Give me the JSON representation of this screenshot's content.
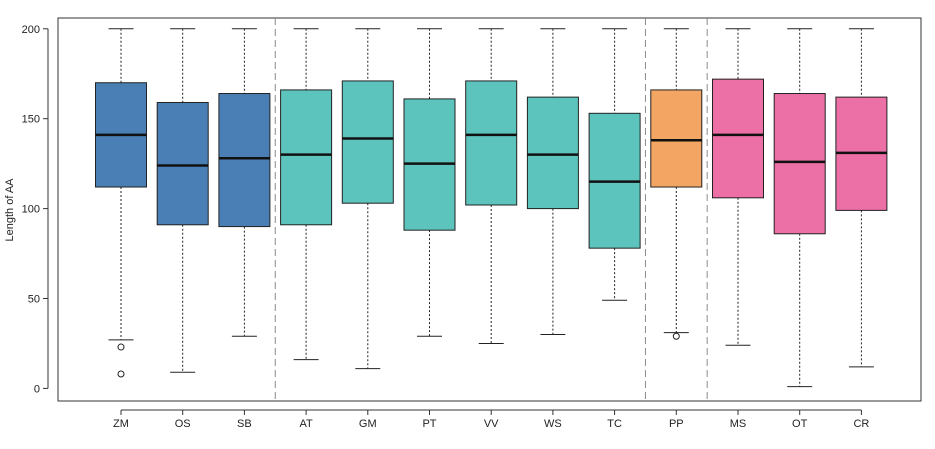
{
  "chart_data": {
    "type": "boxplot",
    "ylabel": "Length of AA",
    "xlabel": "",
    "title": "",
    "ylim": [
      -7,
      206
    ],
    "yticks": [
      0,
      50,
      100,
      150,
      200
    ],
    "grid": false,
    "legend": "none",
    "categories": [
      "ZM",
      "OS",
      "SB",
      "AT",
      "GM",
      "PT",
      "VV",
      "WS",
      "TC",
      "PP",
      "MS",
      "OT",
      "CR"
    ],
    "separators_after": [
      "SB",
      "TC",
      "PP"
    ],
    "groups": [
      {
        "members": [
          "ZM",
          "OS",
          "SB"
        ],
        "color": "#4a7fb5"
      },
      {
        "members": [
          "AT",
          "GM",
          "PT",
          "VV",
          "WS",
          "TC"
        ],
        "color": "#5cc4bd"
      },
      {
        "members": [
          "PP"
        ],
        "color": "#f3a564"
      },
      {
        "members": [
          "MS",
          "OT",
          "CR"
        ],
        "color": "#ec6fa6"
      }
    ],
    "boxes": [
      {
        "name": "ZM",
        "whisker_low": 27,
        "q1": 112,
        "median": 141,
        "q3": 170,
        "whisker_high": 200,
        "outliers": [
          23,
          8
        ]
      },
      {
        "name": "OS",
        "whisker_low": 9,
        "q1": 91,
        "median": 124,
        "q3": 159,
        "whisker_high": 200,
        "outliers": []
      },
      {
        "name": "SB",
        "whisker_low": 29,
        "q1": 90,
        "median": 128,
        "q3": 164,
        "whisker_high": 200,
        "outliers": []
      },
      {
        "name": "AT",
        "whisker_low": 16,
        "q1": 91,
        "median": 130,
        "q3": 166,
        "whisker_high": 200,
        "outliers": []
      },
      {
        "name": "GM",
        "whisker_low": 11,
        "q1": 103,
        "median": 139,
        "q3": 171,
        "whisker_high": 200,
        "outliers": []
      },
      {
        "name": "PT",
        "whisker_low": 29,
        "q1": 88,
        "median": 125,
        "q3": 161,
        "whisker_high": 200,
        "outliers": []
      },
      {
        "name": "VV",
        "whisker_low": 25,
        "q1": 102,
        "median": 141,
        "q3": 171,
        "whisker_high": 200,
        "outliers": []
      },
      {
        "name": "WS",
        "whisker_low": 30,
        "q1": 100,
        "median": 130,
        "q3": 162,
        "whisker_high": 200,
        "outliers": []
      },
      {
        "name": "TC",
        "whisker_low": 49,
        "q1": 78,
        "median": 115,
        "q3": 153,
        "whisker_high": 200,
        "outliers": []
      },
      {
        "name": "PP",
        "whisker_low": 31,
        "q1": 112,
        "median": 138,
        "q3": 166,
        "whisker_high": 200,
        "outliers": [
          29
        ]
      },
      {
        "name": "MS",
        "whisker_low": 24,
        "q1": 106,
        "median": 141,
        "q3": 172,
        "whisker_high": 200,
        "outliers": []
      },
      {
        "name": "OT",
        "whisker_low": 1,
        "q1": 86,
        "median": 126,
        "q3": 164,
        "whisker_high": 200,
        "outliers": []
      },
      {
        "name": "CR",
        "whisker_low": 12,
        "q1": 99,
        "median": 131,
        "q3": 162,
        "whisker_high": 200,
        "outliers": []
      }
    ]
  }
}
